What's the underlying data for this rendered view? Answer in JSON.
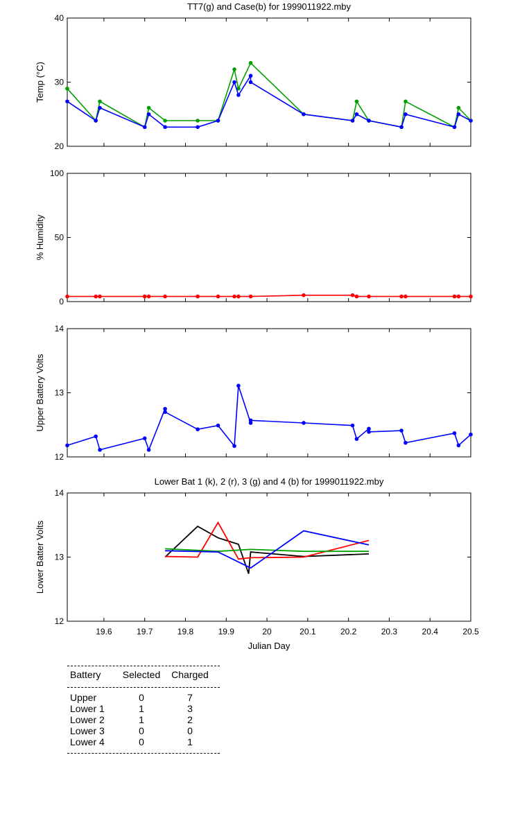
{
  "chart_data": [
    {
      "type": "line",
      "title": "TT7(g) and Case(b) for 1999011922.mby",
      "xlabel": "",
      "ylabel": "Temp  (°C)",
      "xlim": [
        19.51,
        20.5
      ],
      "ylim": [
        20,
        40
      ],
      "yticks": [
        "20",
        "30",
        "40"
      ],
      "markers": true,
      "series": [
        {
          "color": "#00a000",
          "x": [
            19.51,
            19.58,
            19.59,
            19.7,
            19.71,
            19.75,
            19.83,
            19.88,
            19.92,
            19.93,
            19.96,
            20.09,
            20.21,
            20.22,
            20.25,
            20.33,
            20.34,
            20.46,
            20.47,
            20.5
          ],
          "y": [
            29,
            24,
            27,
            23,
            26,
            24,
            24,
            24,
            32,
            29,
            33,
            25,
            24,
            27,
            24,
            23,
            27,
            23,
            26,
            24
          ]
        },
        {
          "color": "#0000ff",
          "x": [
            19.51,
            19.58,
            19.59,
            19.7,
            19.71,
            19.75,
            19.83,
            19.88,
            19.92,
            19.93,
            19.96,
            19.96,
            20.09,
            20.21,
            20.22,
            20.25,
            20.33,
            20.34,
            20.46,
            20.47,
            20.5
          ],
          "y": [
            27,
            24,
            26,
            23,
            25,
            23,
            23,
            24,
            30,
            28,
            31,
            30,
            25,
            24,
            25,
            24,
            23,
            25,
            23,
            25,
            24
          ]
        }
      ]
    },
    {
      "type": "line",
      "title": "",
      "xlabel": "",
      "ylabel": "% Humidity",
      "xlim": [
        19.51,
        20.5
      ],
      "ylim": [
        0,
        100
      ],
      "yticks": [
        "0",
        "50",
        "100"
      ],
      "markers": true,
      "series": [
        {
          "color": "#ff0000",
          "x": [
            19.51,
            19.58,
            19.59,
            19.7,
            19.71,
            19.75,
            19.83,
            19.88,
            19.92,
            19.93,
            19.96,
            20.09,
            20.21,
            20.22,
            20.25,
            20.33,
            20.34,
            20.46,
            20.47,
            20.5
          ],
          "y": [
            4,
            4,
            4,
            4,
            4,
            4,
            4,
            4,
            4,
            4,
            4,
            5,
            5,
            4,
            4,
            4,
            4,
            4,
            4,
            4
          ]
        }
      ]
    },
    {
      "type": "line",
      "title": "",
      "xlabel": "",
      "ylabel": "Upper Battery Volts",
      "xlim": [
        19.51,
        20.5
      ],
      "ylim": [
        12,
        14
      ],
      "yticks": [
        "12",
        "13",
        "14"
      ],
      "markers": true,
      "series": [
        {
          "color": "#0000ff",
          "x": [
            19.51,
            19.58,
            19.59,
            19.7,
            19.71,
            19.75,
            19.75,
            19.83,
            19.88,
            19.92,
            19.93,
            19.96,
            19.96,
            20.09,
            20.21,
            20.22,
            20.25,
            20.25,
            20.33,
            20.34,
            20.46,
            20.47,
            20.5
          ],
          "y": [
            12.18,
            12.32,
            12.11,
            12.29,
            12.11,
            12.75,
            12.7,
            12.43,
            12.49,
            12.17,
            13.11,
            12.53,
            12.57,
            12.53,
            12.49,
            12.28,
            12.44,
            12.39,
            12.41,
            12.22,
            12.37,
            12.18,
            12.35
          ]
        }
      ]
    },
    {
      "type": "line",
      "title": "Lower Bat 1 (k), 2 (r), 3 (g) and 4 (b) for 1999011922.mby",
      "xlabel": "Julian Day",
      "ylabel": "Lower Batter Volts",
      "xlim": [
        19.51,
        20.5
      ],
      "ylim": [
        12,
        14
      ],
      "yticks": [
        "12",
        "13",
        "14"
      ],
      "xticks": [
        19.6,
        19.7,
        19.8,
        19.9,
        20,
        20.1,
        20.2,
        20.3,
        20.4,
        20.5
      ],
      "xtick_labels": [
        "19.6",
        "19.7",
        "19.8",
        "19.9",
        "20",
        "20.1",
        "20.2",
        "20.3",
        "20.4",
        "20.5"
      ],
      "markers": false,
      "series": [
        {
          "color": "#000000",
          "x": [
            19.75,
            19.83,
            19.88,
            19.93,
            19.955,
            19.96,
            20.09,
            20.25
          ],
          "y": [
            13.0,
            13.48,
            13.3,
            13.2,
            12.74,
            13.08,
            13.01,
            13.05
          ]
        },
        {
          "color": "#ff0000",
          "x": [
            19.75,
            19.83,
            19.88,
            19.93,
            19.96,
            20.09,
            20.25
          ],
          "y": [
            13.01,
            13.0,
            13.54,
            12.97,
            12.99,
            13.0,
            13.26
          ]
        },
        {
          "color": "#00a000",
          "x": [
            19.75,
            19.88,
            19.96,
            20.09,
            20.25
          ],
          "y": [
            13.13,
            13.09,
            13.12,
            13.09,
            13.09
          ]
        },
        {
          "color": "#0000ff",
          "x": [
            19.75,
            19.88,
            19.96,
            20.09,
            20.25
          ],
          "y": [
            13.1,
            13.08,
            12.83,
            13.41,
            13.19
          ]
        }
      ]
    }
  ],
  "battery_table": {
    "headers": [
      "Battery",
      "Selected",
      "Charged"
    ],
    "rows": [
      [
        "Upper",
        "0",
        "7"
      ],
      [
        "Lower 1",
        "1",
        "3"
      ],
      [
        "Lower 2",
        "1",
        "2"
      ],
      [
        "Lower 3",
        "0",
        "0"
      ],
      [
        "Lower 4",
        "0",
        "1"
      ]
    ]
  }
}
